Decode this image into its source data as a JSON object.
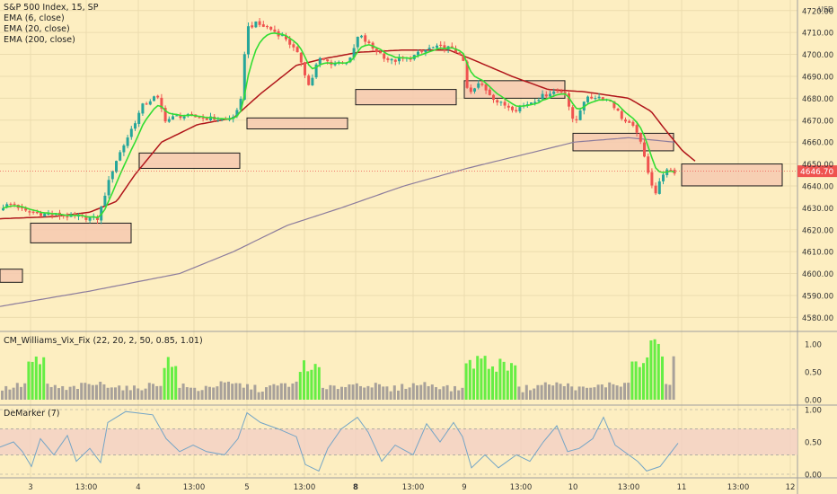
{
  "header": {
    "symbol_line": "S&P 500 Index, 15, SP",
    "indicators": [
      "EMA (6, close)",
      "EMA (20, close)",
      "EMA (200, close)"
    ],
    "currency": "USD"
  },
  "colors": {
    "background": "#fdeec1",
    "up_candle": "#26a69a",
    "down_candle": "#ef5350",
    "ema6": "#33dd33",
    "ema20": "#b0151a",
    "ema200": "#8c7c9c",
    "zone_fill": "#f6c9b0",
    "vix_high": "#66ee44",
    "vix_normal": "#a8a19a",
    "price_tag": "#ef5350",
    "demarker_line": "#74a5c6",
    "demarker_band": "#f2cfc4"
  },
  "price_panel": {
    "last_price": "4646.70",
    "y_ticks": [
      "4720.00",
      "4710.00",
      "4700.00",
      "4690.00",
      "4680.00",
      "4670.00",
      "4660.00",
      "4650.00",
      "4640.00",
      "4630.00",
      "4620.00",
      "4610.00",
      "4600.00",
      "4590.00",
      "4580.00"
    ]
  },
  "vix_panel": {
    "label": "CM_Williams_Vix_Fix (22, 20, 2, 50, 0.85, 1.01)",
    "y_ticks": [
      "1.00",
      "0.50",
      "0.00"
    ]
  },
  "demarker_panel": {
    "label": "DeMarker (7)",
    "y_ticks": [
      "1.00",
      "0.50",
      "0.00"
    ]
  },
  "x_axis": {
    "ticks": [
      "3",
      "13:00",
      "4",
      "13:00",
      "5",
      "13:00",
      "8",
      "13:00",
      "9",
      "13:00",
      "10",
      "13:00",
      "11",
      "13:00",
      "12"
    ]
  },
  "chart_data": {
    "type": "candlestick",
    "title": "S&P 500 Index, 15, SP",
    "ylim": [
      4574,
      4724
    ],
    "x_labels": [
      "3",
      "13:00",
      "4",
      "13:00",
      "5",
      "13:00",
      "8",
      "13:00",
      "9",
      "13:00",
      "10",
      "13:00",
      "11",
      "13:00",
      "12"
    ],
    "last_price": 4646.7,
    "price_path": [
      [
        0,
        4630
      ],
      [
        15,
        4632
      ],
      [
        30,
        4628
      ],
      [
        55,
        4627
      ],
      [
        80,
        4626
      ],
      [
        110,
        4625
      ],
      [
        118,
        4637
      ],
      [
        128,
        4650
      ],
      [
        140,
        4660
      ],
      [
        160,
        4677
      ],
      [
        175,
        4681
      ],
      [
        185,
        4670
      ],
      [
        200,
        4672
      ],
      [
        230,
        4671
      ],
      [
        255,
        4670
      ],
      [
        268,
        4675
      ],
      [
        275,
        4712
      ],
      [
        285,
        4714
      ],
      [
        300,
        4712
      ],
      [
        320,
        4707
      ],
      [
        335,
        4698
      ],
      [
        345,
        4685
      ],
      [
        355,
        4698
      ],
      [
        370,
        4696
      ],
      [
        390,
        4697
      ],
      [
        400,
        4709
      ],
      [
        415,
        4703
      ],
      [
        435,
        4697
      ],
      [
        455,
        4698
      ],
      [
        480,
        4703
      ],
      [
        500,
        4703
      ],
      [
        515,
        4700
      ],
      [
        522,
        4681
      ],
      [
        535,
        4687
      ],
      [
        555,
        4678
      ],
      [
        575,
        4675
      ],
      [
        595,
        4679
      ],
      [
        615,
        4683
      ],
      [
        630,
        4683
      ],
      [
        640,
        4667
      ],
      [
        650,
        4679
      ],
      [
        665,
        4681
      ],
      [
        680,
        4679
      ],
      [
        695,
        4670
      ],
      [
        710,
        4665
      ],
      [
        720,
        4650
      ],
      [
        730,
        4636
      ],
      [
        740,
        4647
      ],
      [
        752,
        4646
      ]
    ],
    "ema200_path": [
      [
        0,
        4585
      ],
      [
        100,
        4592
      ],
      [
        200,
        4600
      ],
      [
        260,
        4610
      ],
      [
        320,
        4622
      ],
      [
        380,
        4630
      ],
      [
        450,
        4640
      ],
      [
        520,
        4648
      ],
      [
        580,
        4654
      ],
      [
        640,
        4660
      ],
      [
        700,
        4662
      ],
      [
        750,
        4660
      ]
    ],
    "ema20_path": [
      [
        0,
        4625
      ],
      [
        60,
        4626
      ],
      [
        100,
        4628
      ],
      [
        130,
        4633
      ],
      [
        150,
        4645
      ],
      [
        180,
        4660
      ],
      [
        220,
        4668
      ],
      [
        260,
        4671
      ],
      [
        290,
        4682
      ],
      [
        330,
        4695
      ],
      [
        360,
        4698
      ],
      [
        400,
        4701
      ],
      [
        450,
        4702
      ],
      [
        500,
        4702
      ],
      [
        530,
        4697
      ],
      [
        570,
        4690
      ],
      [
        610,
        4684
      ],
      [
        650,
        4683
      ],
      [
        700,
        4680
      ],
      [
        725,
        4674
      ],
      [
        740,
        4666
      ],
      [
        760,
        4656
      ],
      [
        775,
        4651
      ]
    ],
    "support_resistance_zones": [
      {
        "x1": 0,
        "x2": 25,
        "y1": 4602,
        "y2": 4596
      },
      {
        "x1": 34,
        "x2": 146,
        "y1": 4623,
        "y2": 4614
      },
      {
        "x1": 155,
        "x2": 267,
        "y1": 4655,
        "y2": 4648
      },
      {
        "x1": 275,
        "x2": 387,
        "y1": 4671,
        "y2": 4666
      },
      {
        "x1": 396,
        "x2": 508,
        "y1": 4684,
        "y2": 4677
      },
      {
        "x1": 517,
        "x2": 629,
        "y1": 4688,
        "y2": 4680
      },
      {
        "x1": 638,
        "x2": 750,
        "y1": 4664,
        "y2": 4656
      },
      {
        "x1": 759,
        "x2": 871,
        "y1": 4650,
        "y2": 4640
      }
    ],
    "vix_fix": {
      "ylim": [
        0,
        1.1
      ],
      "threshold": 0.85,
      "high_ranges": [
        [
          30,
          50
        ],
        [
          180,
          196
        ],
        [
          330,
          354
        ],
        [
          516,
          576
        ],
        [
          700,
          740
        ]
      ],
      "peak_value": 1.12
    },
    "demarker": {
      "ylim": [
        0,
        1
      ],
      "upper": 0.7,
      "lower": 0.3,
      "path": [
        [
          0,
          0.42
        ],
        [
          15,
          0.5
        ],
        [
          25,
          0.35
        ],
        [
          35,
          0.12
        ],
        [
          45,
          0.55
        ],
        [
          60,
          0.3
        ],
        [
          75,
          0.6
        ],
        [
          85,
          0.2
        ],
        [
          100,
          0.4
        ],
        [
          112,
          0.18
        ],
        [
          120,
          0.8
        ],
        [
          140,
          0.97
        ],
        [
          170,
          0.92
        ],
        [
          185,
          0.55
        ],
        [
          200,
          0.35
        ],
        [
          215,
          0.45
        ],
        [
          230,
          0.35
        ],
        [
          250,
          0.3
        ],
        [
          265,
          0.55
        ],
        [
          275,
          0.95
        ],
        [
          290,
          0.8
        ],
        [
          310,
          0.7
        ],
        [
          330,
          0.58
        ],
        [
          340,
          0.15
        ],
        [
          355,
          0.05
        ],
        [
          365,
          0.4
        ],
        [
          380,
          0.7
        ],
        [
          398,
          0.88
        ],
        [
          410,
          0.65
        ],
        [
          425,
          0.2
        ],
        [
          440,
          0.45
        ],
        [
          460,
          0.3
        ],
        [
          475,
          0.78
        ],
        [
          490,
          0.5
        ],
        [
          505,
          0.8
        ],
        [
          515,
          0.58
        ],
        [
          525,
          0.1
        ],
        [
          540,
          0.3
        ],
        [
          555,
          0.1
        ],
        [
          575,
          0.3
        ],
        [
          590,
          0.2
        ],
        [
          605,
          0.5
        ],
        [
          620,
          0.75
        ],
        [
          632,
          0.35
        ],
        [
          645,
          0.4
        ],
        [
          660,
          0.55
        ],
        [
          672,
          0.88
        ],
        [
          685,
          0.45
        ],
        [
          700,
          0.3
        ],
        [
          710,
          0.2
        ],
        [
          720,
          0.05
        ],
        [
          735,
          0.12
        ],
        [
          745,
          0.3
        ],
        [
          755,
          0.48
        ]
      ]
    }
  }
}
